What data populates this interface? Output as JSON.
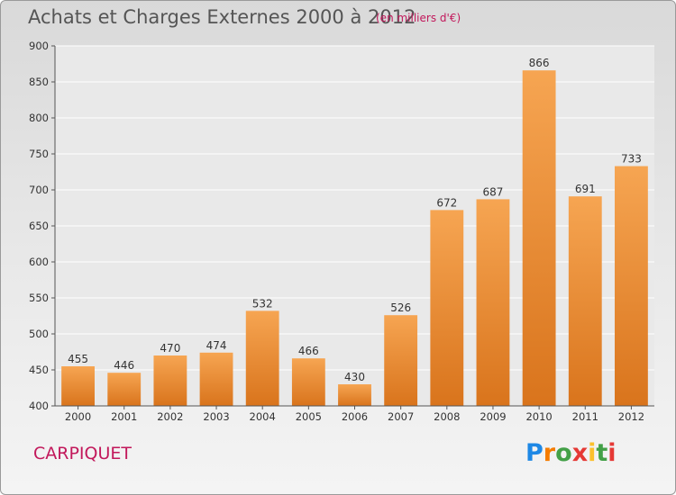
{
  "title": "Achats et Charges Externes 2000 à 2012",
  "subtitle": "(en milliers d'€)",
  "city": "CARPIQUET",
  "logo": {
    "letters": [
      "P",
      "r",
      "o",
      "x",
      "i",
      "t",
      "i"
    ],
    "colors": [
      "#1e88e5",
      "#f57c00",
      "#43a047",
      "#e53935",
      "#fbc02d",
      "#43a047",
      "#e53935"
    ]
  },
  "chart_data": {
    "type": "bar",
    "categories": [
      "2000",
      "2001",
      "2002",
      "2003",
      "2004",
      "2005",
      "2006",
      "2007",
      "2008",
      "2009",
      "2010",
      "2011",
      "2012"
    ],
    "values": [
      455,
      446,
      470,
      474,
      532,
      466,
      430,
      526,
      672,
      687,
      866,
      691,
      733
    ],
    "ylim": [
      400,
      900
    ],
    "yticks": [
      400,
      450,
      500,
      550,
      600,
      650,
      700,
      750,
      800,
      850,
      900
    ],
    "grid": true,
    "bar_color_top": "#f6a552",
    "bar_color_bottom": "#d9741c"
  }
}
